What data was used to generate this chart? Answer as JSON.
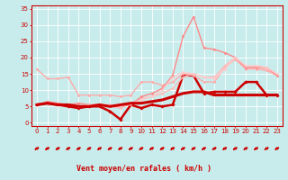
{
  "xlabel": "Vent moyen/en rafales ( km/h )",
  "bg_color": "#c8ecec",
  "grid_color": "#ffffff",
  "xlim": [
    -0.5,
    23.5
  ],
  "ylim": [
    -1,
    36
  ],
  "yticks": [
    0,
    5,
    10,
    15,
    20,
    25,
    30,
    35
  ],
  "xticks": [
    0,
    1,
    2,
    3,
    4,
    5,
    6,
    7,
    8,
    9,
    10,
    11,
    12,
    13,
    14,
    15,
    16,
    17,
    18,
    19,
    20,
    21,
    22,
    23
  ],
  "lines": [
    {
      "x": [
        0,
        1,
        2,
        3,
        4,
        5,
        6,
        7,
        8,
        9,
        10,
        11,
        12,
        13,
        14,
        15,
        16,
        17,
        18,
        19,
        20,
        21,
        22,
        23
      ],
      "y": [
        5.5,
        6.0,
        5.5,
        5.0,
        4.5,
        5.0,
        5.0,
        3.5,
        1.0,
        5.5,
        4.5,
        5.5,
        5.0,
        5.5,
        14.5,
        14.5,
        9.0,
        9.5,
        9.5,
        9.5,
        12.5,
        12.5,
        8.5,
        8.5
      ],
      "color": "#cc0000",
      "lw": 1.8,
      "marker": "D",
      "ms": 1.8
    },
    {
      "x": [
        0,
        1,
        2,
        3,
        4,
        5,
        6,
        7,
        8,
        9,
        10,
        11,
        12,
        13,
        14,
        15,
        16,
        17,
        18,
        19,
        20,
        21,
        22,
        23
      ],
      "y": [
        5.5,
        6.0,
        5.5,
        5.5,
        5.0,
        5.0,
        5.5,
        5.0,
        5.5,
        6.0,
        6.0,
        6.5,
        7.0,
        8.0,
        9.0,
        9.5,
        9.5,
        8.5,
        8.5,
        8.5,
        8.5,
        8.5,
        8.5,
        8.5
      ],
      "color": "#cc0000",
      "lw": 2.2,
      "marker": null,
      "ms": 0
    },
    {
      "x": [
        0,
        1,
        2,
        3,
        4,
        5,
        6,
        7,
        8,
        9,
        10,
        11,
        12,
        13,
        14,
        15,
        16,
        17,
        18,
        19,
        20,
        21,
        22,
        23
      ],
      "y": [
        16.5,
        13.5,
        13.5,
        14.0,
        8.5,
        8.5,
        8.5,
        8.5,
        8.0,
        8.5,
        12.5,
        12.5,
        11.5,
        12.5,
        15.0,
        14.5,
        12.5,
        12.5,
        17.0,
        19.5,
        16.5,
        16.5,
        16.0,
        14.5
      ],
      "color": "#ffaaaa",
      "lw": 1.0,
      "marker": "D",
      "ms": 1.5
    },
    {
      "x": [
        0,
        1,
        2,
        3,
        4,
        5,
        6,
        7,
        8,
        9,
        10,
        11,
        12,
        13,
        14,
        15,
        16,
        17,
        18,
        19,
        20,
        21,
        22,
        23
      ],
      "y": [
        5.5,
        6.0,
        5.5,
        5.5,
        5.0,
        5.5,
        5.5,
        5.0,
        4.5,
        6.0,
        7.5,
        8.0,
        9.0,
        10.5,
        14.0,
        15.0,
        14.0,
        14.0,
        17.5,
        20.0,
        17.0,
        17.0,
        16.5,
        14.5
      ],
      "color": "#ffbbbb",
      "lw": 1.0,
      "marker": "D",
      "ms": 1.5
    },
    {
      "x": [
        0,
        1,
        2,
        3,
        4,
        5,
        6,
        7,
        8,
        9,
        10,
        11,
        12,
        13,
        14,
        15,
        16,
        17,
        18,
        19,
        20,
        21,
        22,
        23
      ],
      "y": [
        5.5,
        6.5,
        6.0,
        5.5,
        6.0,
        5.5,
        5.5,
        5.0,
        5.0,
        5.5,
        8.0,
        9.0,
        10.5,
        14.5,
        26.5,
        32.5,
        23.0,
        22.5,
        21.5,
        20.0,
        17.0,
        17.0,
        17.0,
        14.5
      ],
      "color": "#ff8888",
      "lw": 1.0,
      "marker": "D",
      "ms": 1.5
    },
    {
      "x": [
        0,
        1,
        2,
        3,
        4,
        5,
        6,
        7,
        8,
        9,
        10,
        11,
        12,
        13,
        14,
        15,
        16,
        17,
        18,
        19,
        20,
        21,
        22,
        23
      ],
      "y": [
        5.5,
        6.0,
        5.5,
        5.5,
        5.0,
        5.5,
        5.5,
        5.5,
        5.0,
        6.0,
        7.0,
        8.0,
        10.0,
        14.0,
        15.5,
        15.0,
        14.0,
        13.5,
        16.5,
        20.0,
        17.5,
        17.5,
        17.0,
        15.0
      ],
      "color": "#ffcccc",
      "lw": 1.0,
      "marker": "D",
      "ms": 1.5
    }
  ],
  "arrow_color": "#cc0000",
  "axis_color": "#cc0000",
  "tick_color": "#cc0000",
  "label_color": "#cc0000",
  "tick_fontsize": 5.0,
  "label_fontsize": 6.0
}
